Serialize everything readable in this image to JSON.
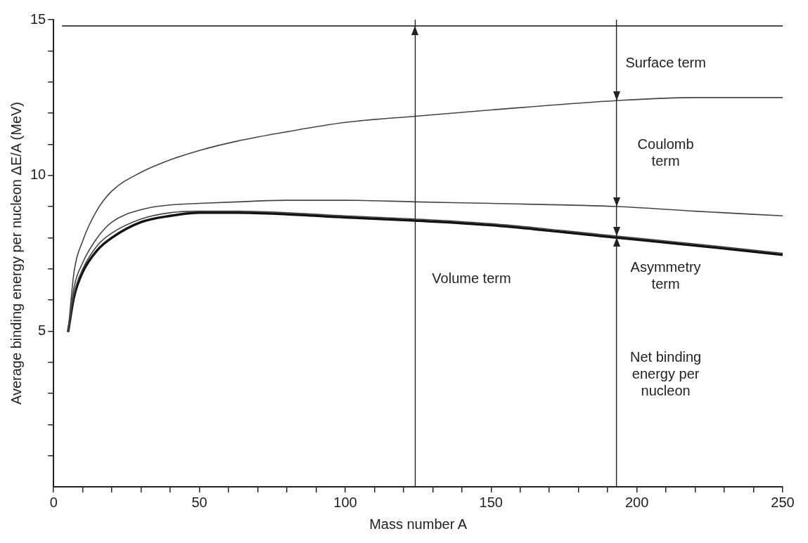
{
  "chart_data": {
    "type": "line",
    "xlabel": "Mass number A",
    "ylabel": "Average binding energy per nucleon ΔE/A (MeV)",
    "xlim": [
      0,
      250
    ],
    "ylim": [
      0,
      15
    ],
    "xticks": [
      0,
      {
        "value": 10,
        "label": null
      },
      {
        "value": 20,
        "label": null
      },
      {
        "value": 30,
        "label": null
      },
      {
        "value": 40,
        "label": null
      },
      50,
      {
        "value": 60,
        "label": null
      },
      {
        "value": 70,
        "label": null
      },
      {
        "value": 80,
        "label": null
      },
      {
        "value": 90,
        "label": null
      },
      100,
      {
        "value": 110,
        "label": null
      },
      {
        "value": 120,
        "label": null
      },
      {
        "value": 130,
        "label": null
      },
      {
        "value": 140,
        "label": null
      },
      150,
      {
        "value": 160,
        "label": null
      },
      {
        "value": 170,
        "label": null
      },
      {
        "value": 180,
        "label": null
      },
      {
        "value": 190,
        "label": null
      },
      200,
      {
        "value": 210,
        "label": null
      },
      {
        "value": 220,
        "label": null
      },
      {
        "value": 230,
        "label": null
      },
      {
        "value": 240,
        "label": null
      },
      250
    ],
    "yticks": [
      {
        "value": 1,
        "label": null
      },
      {
        "value": 2,
        "label": null
      },
      {
        "value": 3,
        "label": null
      },
      {
        "value": 4,
        "label": null
      },
      5,
      {
        "value": 6,
        "label": null
      },
      {
        "value": 7,
        "label": null
      },
      {
        "value": 8,
        "label": null
      },
      {
        "value": 9,
        "label": null
      },
      10,
      {
        "value": 11,
        "label": null
      },
      {
        "value": 12,
        "label": null
      },
      {
        "value": 13,
        "label": null
      },
      {
        "value": 14,
        "label": null
      },
      15
    ],
    "grid": false,
    "legend": false,
    "marker": "none",
    "line_style": "solid",
    "series": [
      {
        "color": "#333333",
        "x": [
          3,
          124,
          193,
          250
        ],
        "values": [
          14.8,
          14.8,
          14.8,
          14.8
        ]
      },
      {
        "color": "#444444",
        "x": [
          5,
          7,
          10,
          15,
          20,
          30,
          40,
          50,
          63,
          80,
          100,
          124,
          150,
          193,
          220,
          250
        ],
        "values": [
          5,
          6.9,
          7.9,
          8.9,
          9.5,
          10.1,
          10.5,
          10.8,
          11.1,
          11.4,
          11.7,
          11.9,
          12.1,
          12.4,
          12.5,
          12.5
        ]
      },
      {
        "color": "#444444",
        "x": [
          5,
          7,
          10,
          15,
          20,
          30,
          40,
          50,
          63,
          80,
          100,
          124,
          150,
          193,
          220,
          250
        ],
        "values": [
          5,
          6.4,
          7.2,
          8,
          8.5,
          8.9,
          9.05,
          9.1,
          9.15,
          9.2,
          9.2,
          9.15,
          9.1,
          9,
          8.85,
          8.7
        ]
      },
      {
        "color": "#444444",
        "x": [
          5,
          7,
          10,
          15,
          20,
          30,
          40,
          50,
          63,
          80,
          100,
          124,
          150,
          193,
          220,
          250
        ],
        "values": [
          5,
          6.2,
          7,
          7.75,
          8.15,
          8.6,
          8.8,
          8.85,
          8.85,
          8.8,
          8.7,
          8.6,
          8.45,
          8.05,
          7.8,
          7.5
        ]
      },
      {
        "color": "#111111",
        "x": [
          5,
          7,
          10,
          15,
          20,
          30,
          40,
          50,
          63,
          80,
          100,
          124,
          150,
          193,
          220,
          250
        ],
        "values": [
          5,
          6.1,
          6.9,
          7.6,
          8,
          8.5,
          8.7,
          8.8,
          8.8,
          8.75,
          8.65,
          8.55,
          8.4,
          8,
          7.75,
          7.45
        ]
      }
    ],
    "ref_lines": [
      {
        "axis": "x",
        "value": 124,
        "color": "#222222"
      },
      {
        "axis": "x",
        "value": 193,
        "color": "#222222"
      }
    ],
    "annotations": [
      "Volume term",
      "Surface term",
      "Coulomb term",
      "Asymmetry term",
      "Net binding energy per nucleon"
    ]
  }
}
